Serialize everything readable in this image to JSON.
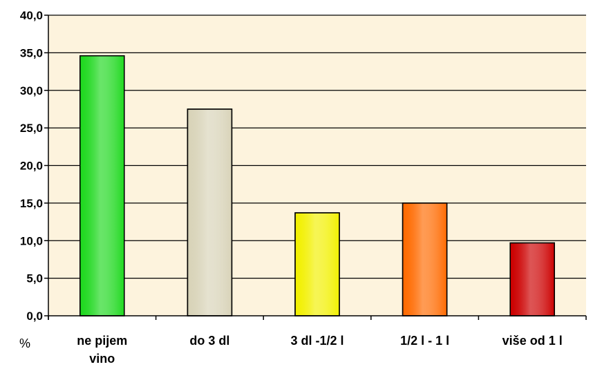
{
  "chart_data": {
    "type": "bar",
    "title": "",
    "xlabel": "",
    "ylabel": "%",
    "ylim": [
      0,
      40
    ],
    "y_ticks": [
      "0,0",
      "5,0",
      "10,0",
      "15,0",
      "20,0",
      "25,0",
      "30,0",
      "35,0",
      "40,0"
    ],
    "grid": true,
    "categories": [
      [
        "ne pijem",
        "vino"
      ],
      [
        "do 3 dl"
      ],
      [
        "3 dl -1/2 l"
      ],
      [
        "1/2 l - 1 l"
      ],
      [
        "više od 1 l"
      ]
    ],
    "values": [
      34.6,
      27.5,
      13.7,
      15.0,
      9.7
    ],
    "bar_colors": [
      "#1fd81f",
      "#d8d3b8",
      "#f2f000",
      "#ff6a00",
      "#cc0000"
    ],
    "plot_background": "#fdf3dd"
  }
}
